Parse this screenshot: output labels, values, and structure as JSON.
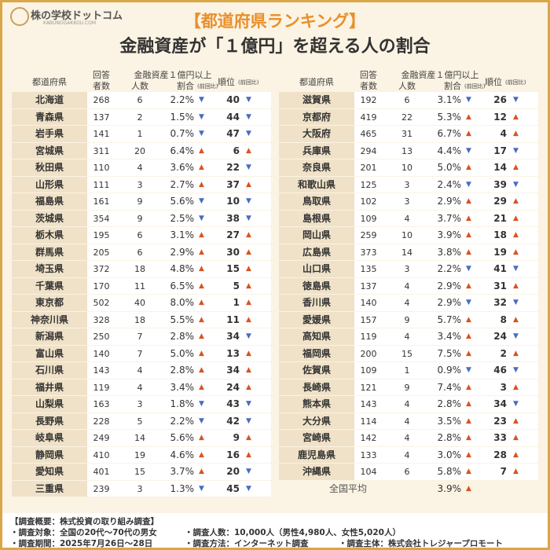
{
  "logo": {
    "name": "株の学校ドットコム",
    "url": "KABUNOGAKKOU.COM"
  },
  "title": {
    "line1": "【都道府県ランキング】",
    "line2": "金融資産が「１億円」を超える人の割合"
  },
  "table": {
    "headers": {
      "prefecture": "都道府県",
      "respondents_1": "回答",
      "respondents_2": "者数",
      "group": "金融資産１億円以上",
      "count": "人数",
      "share": "割合",
      "change": "(前回比)",
      "rank": "順位"
    },
    "arrow_colors": {
      "▲": "#d9531e",
      "▼": "#4a6cc0"
    },
    "left_rows": [
      [
        "北海道",
        268,
        6,
        "2.2%",
        "▼",
        40,
        "▼"
      ],
      [
        "青森県",
        137,
        2,
        "1.5%",
        "▼",
        44,
        "▼"
      ],
      [
        "岩手県",
        141,
        1,
        "0.7%",
        "▼",
        47,
        "▼"
      ],
      [
        "宮城県",
        311,
        20,
        "6.4%",
        "▲",
        6,
        "▲"
      ],
      [
        "秋田県",
        110,
        4,
        "3.6%",
        "▲",
        22,
        "▼"
      ],
      [
        "山形県",
        111,
        3,
        "2.7%",
        "▲",
        37,
        "▲"
      ],
      [
        "福島県",
        161,
        9,
        "5.6%",
        "▼",
        10,
        "▼"
      ],
      [
        "茨城県",
        354,
        9,
        "2.5%",
        "▼",
        38,
        "▼"
      ],
      [
        "栃木県",
        195,
        6,
        "3.1%",
        "▲",
        27,
        "▲"
      ],
      [
        "群馬県",
        205,
        6,
        "2.9%",
        "▲",
        30,
        "▲"
      ],
      [
        "埼玉県",
        372,
        18,
        "4.8%",
        "▲",
        15,
        "▲"
      ],
      [
        "千葉県",
        170,
        11,
        "6.5%",
        "▲",
        5,
        "▲"
      ],
      [
        "東京都",
        502,
        40,
        "8.0%",
        "▲",
        1,
        "▲"
      ],
      [
        "神奈川県",
        328,
        18,
        "5.5%",
        "▲",
        11,
        "▲"
      ],
      [
        "新潟県",
        250,
        7,
        "2.8%",
        "▲",
        34,
        "▼"
      ],
      [
        "富山県",
        140,
        7,
        "5.0%",
        "▲",
        13,
        "▲"
      ],
      [
        "石川県",
        143,
        4,
        "2.8%",
        "▲",
        34,
        "▲"
      ],
      [
        "福井県",
        119,
        4,
        "3.4%",
        "▲",
        24,
        "▲"
      ],
      [
        "山梨県",
        163,
        3,
        "1.8%",
        "▼",
        43,
        "▼"
      ],
      [
        "長野県",
        228,
        5,
        "2.2%",
        "▼",
        42,
        "▼"
      ],
      [
        "岐阜県",
        249,
        14,
        "5.6%",
        "▲",
        9,
        "▲"
      ],
      [
        "静岡県",
        410,
        19,
        "4.6%",
        "▲",
        16,
        "▲"
      ],
      [
        "愛知県",
        401,
        15,
        "3.7%",
        "▲",
        20,
        "▼"
      ],
      [
        "三重県",
        239,
        3,
        "1.3%",
        "▼",
        45,
        "▼"
      ]
    ],
    "right_rows": [
      [
        "滋賀県",
        192,
        6,
        "3.1%",
        "▼",
        26,
        "▼"
      ],
      [
        "京都府",
        419,
        22,
        "5.3%",
        "▲",
        12,
        "▲"
      ],
      [
        "大阪府",
        465,
        31,
        "6.7%",
        "▲",
        4,
        "▲"
      ],
      [
        "兵庫県",
        294,
        13,
        "4.4%",
        "▼",
        17,
        "▼"
      ],
      [
        "奈良県",
        201,
        10,
        "5.0%",
        "▲",
        14,
        "▲"
      ],
      [
        "和歌山県",
        125,
        3,
        "2.4%",
        "▼",
        39,
        "▼"
      ],
      [
        "鳥取県",
        102,
        3,
        "2.9%",
        "▲",
        29,
        "▲"
      ],
      [
        "島根県",
        109,
        4,
        "3.7%",
        "▲",
        21,
        "▲"
      ],
      [
        "岡山県",
        259,
        10,
        "3.9%",
        "▲",
        18,
        "▲"
      ],
      [
        "広島県",
        373,
        14,
        "3.8%",
        "▲",
        19,
        "▲"
      ],
      [
        "山口県",
        135,
        3,
        "2.2%",
        "▼",
        41,
        "▼"
      ],
      [
        "徳島県",
        137,
        4,
        "2.9%",
        "▲",
        31,
        "▲"
      ],
      [
        "香川県",
        140,
        4,
        "2.9%",
        "▼",
        32,
        "▼"
      ],
      [
        "愛媛県",
        157,
        9,
        "5.7%",
        "▲",
        8,
        "▲"
      ],
      [
        "高知県",
        119,
        4,
        "3.4%",
        "▲",
        24,
        "▼"
      ],
      [
        "福岡県",
        200,
        15,
        "7.5%",
        "▲",
        2,
        "▲"
      ],
      [
        "佐賀県",
        109,
        1,
        "0.9%",
        "▼",
        46,
        "▼"
      ],
      [
        "長崎県",
        121,
        9,
        "7.4%",
        "▲",
        3,
        "▲"
      ],
      [
        "熊本県",
        143,
        4,
        "2.8%",
        "▲",
        34,
        "▼"
      ],
      [
        "大分県",
        114,
        4,
        "3.5%",
        "▲",
        23,
        "▲"
      ],
      [
        "宮崎県",
        142,
        4,
        "2.8%",
        "▲",
        33,
        "▲"
      ],
      [
        "鹿児島県",
        133,
        4,
        "3.0%",
        "▲",
        28,
        "▲"
      ],
      [
        "沖縄県",
        104,
        6,
        "5.8%",
        "▲",
        7,
        "▲"
      ]
    ],
    "average": {
      "label": "全国平均",
      "share": "3.9%",
      "arrow": "▲"
    }
  },
  "footer": {
    "heading": "【調査概要：株式投資の取り組み調査】",
    "items": [
      "・調査対象：全国の20代〜70代の男女",
      "・調査人数：10,000人（男性4,980人、女性5,020人）",
      "・調査期間：2025年7月26日〜28日",
      "・調査方法：インターネット調査",
      "・調査主体：株式会社トレジャープロモート"
    ]
  }
}
